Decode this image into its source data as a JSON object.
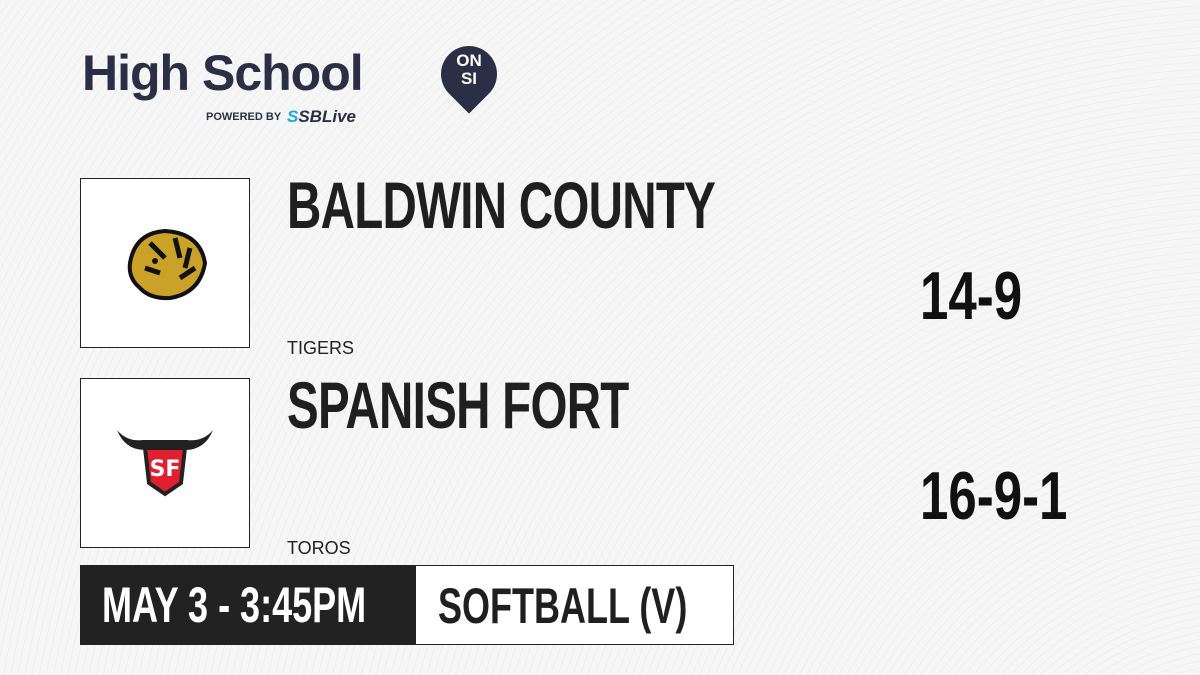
{
  "brand": {
    "title": "High School",
    "badge_top": "ON",
    "badge_bottom": "SI",
    "powered_by": "POWERED BY",
    "sponsor_prefix": "S",
    "sponsor": "SBLive"
  },
  "teams": [
    {
      "name": "BALDWIN COUNTY",
      "mascot": "TIGERS",
      "record": "14-9",
      "logo": "tiger-logo"
    },
    {
      "name": "SPANISH FORT",
      "mascot": "TOROS",
      "record": "16-9-1",
      "logo": "bull-logo"
    }
  ],
  "game": {
    "datetime": "MAY 3 - 3:45PM",
    "sport": "SOFTBALL (V)"
  },
  "colors": {
    "brand": "#2a2f45",
    "sponsor_accent": "#1aa7e6",
    "dark": "#222222",
    "tiger_gold": "#c9a227",
    "bull_red": "#e0202f"
  }
}
